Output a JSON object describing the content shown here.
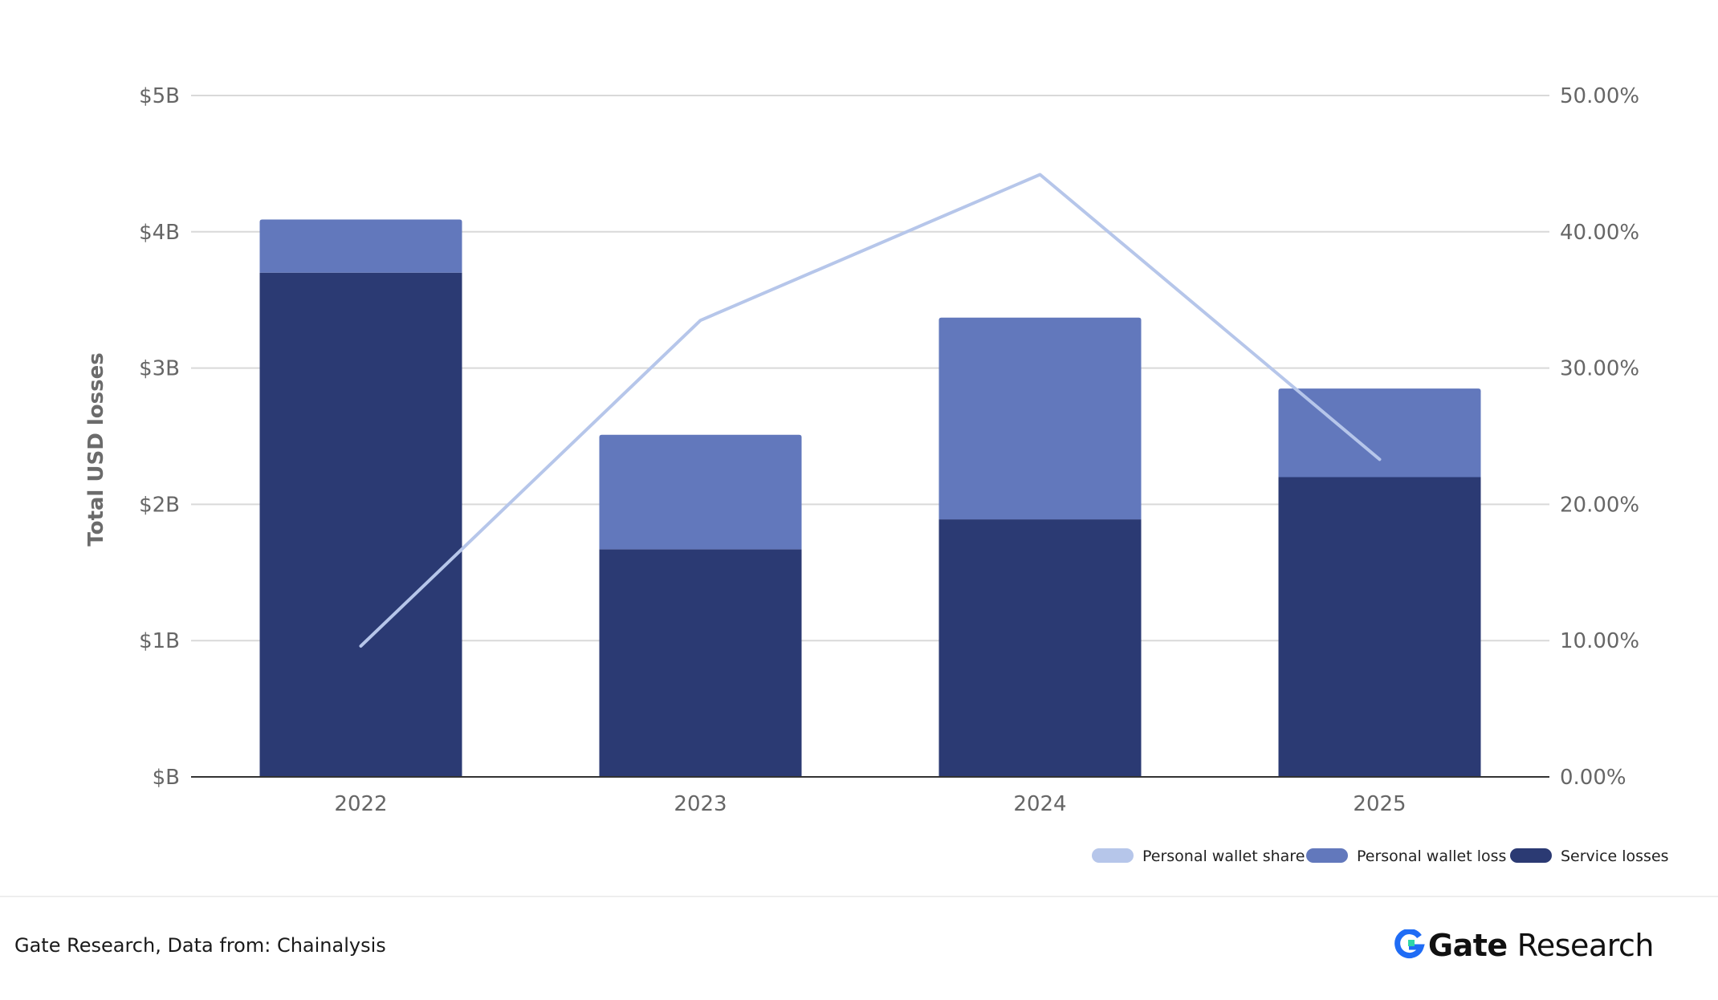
{
  "chart_data": {
    "type": "bar",
    "stacked": true,
    "categories": [
      "2022",
      "2023",
      "2024",
      "2025"
    ],
    "series": [
      {
        "name": "Service losses",
        "kind": "bar",
        "axis": "left",
        "color": "#2b3a73",
        "values": [
          3.7,
          1.67,
          1.89,
          2.2
        ]
      },
      {
        "name": "Personal wallet loss",
        "kind": "bar",
        "axis": "left",
        "color": "#6278bc",
        "values": [
          0.39,
          0.84,
          1.48,
          0.65
        ]
      },
      {
        "name": "Personal wallet share",
        "kind": "line",
        "axis": "right",
        "color": "#b6c6ea",
        "values": [
          9.6,
          33.5,
          44.2,
          23.3
        ]
      }
    ],
    "ylabel": "Total USD losses",
    "ylim": [
      0,
      5
    ],
    "y_ticks": [
      "$B",
      "$1B",
      "$2B",
      "$3B",
      "$4B",
      "$5B"
    ],
    "y2lim": [
      0,
      50
    ],
    "y2_ticks": [
      "0.00%",
      "10.00%",
      "20.00%",
      "30.00%",
      "40.00%",
      "50.00%"
    ],
    "grid": true,
    "legend_position": "bottom-right",
    "legend_order": [
      "Personal wallet share",
      "Personal wallet loss",
      "Service losses"
    ]
  },
  "footer": {
    "source": "Gate Research, Data from:  Chainalysis",
    "brand_name": "Gate",
    "brand_sub": "Research",
    "brand_color": "#1f6cf5",
    "logo_icon": "gate-logo-icon"
  }
}
